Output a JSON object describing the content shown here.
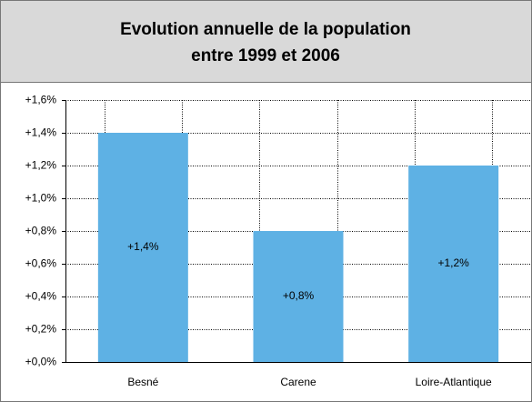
{
  "chart_data": {
    "type": "bar",
    "title": "Evolution annuelle de la population",
    "subtitle": "entre 1999 et 2006",
    "categories": [
      "Besné",
      "Carene",
      "Loire-Atlantique"
    ],
    "values": [
      1.4,
      0.8,
      1.2
    ],
    "value_labels": [
      "+1,4%",
      "+0,8%",
      "+1,2%"
    ],
    "color": "#5eb1e4",
    "ylim": [
      0,
      1.6
    ],
    "yticks": [
      {
        "value": 0,
        "label": "+0,0%"
      },
      {
        "value": 0.2,
        "label": "+0,2%"
      },
      {
        "value": 0.4,
        "label": "+0,4%"
      },
      {
        "value": 0.6,
        "label": "+0,6%"
      },
      {
        "value": 0.8,
        "label": "+0,8%"
      },
      {
        "value": 1.0,
        "label": "+1,0%"
      },
      {
        "value": 1.2,
        "label": "+1,2%"
      },
      {
        "value": 1.4,
        "label": "+1,4%"
      },
      {
        "value": 1.6,
        "label": "+1,6%"
      }
    ],
    "grid": true
  }
}
